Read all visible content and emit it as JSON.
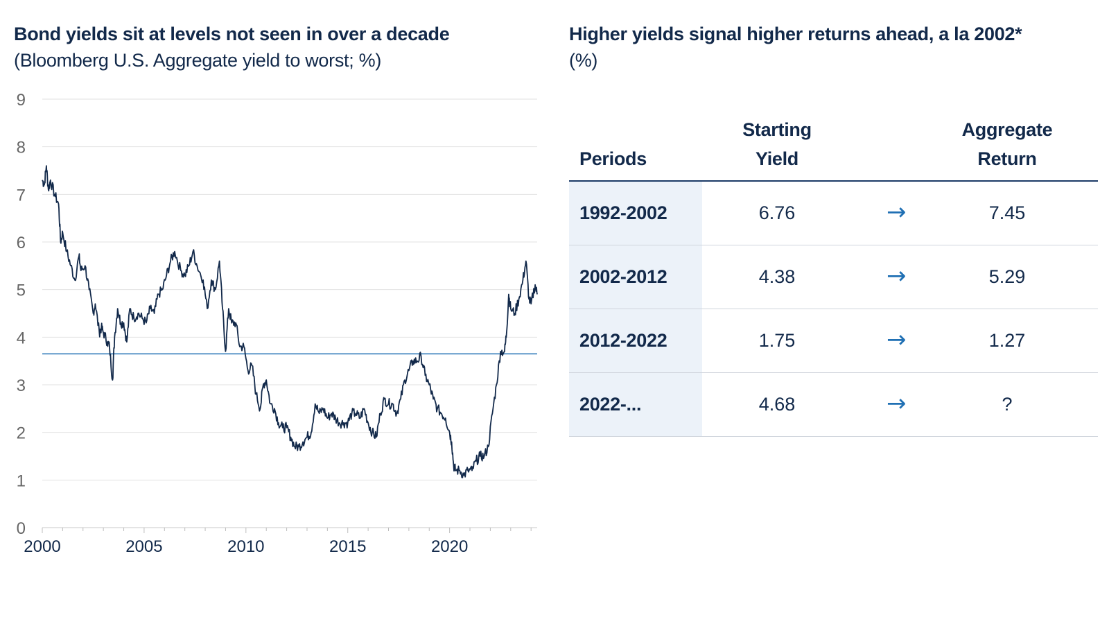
{
  "left": {
    "title": "Bond yields sit at levels not seen in over a decade",
    "subtitle": "(Bloomberg U.S. Aggregate yield to worst; %)"
  },
  "right": {
    "title": "Higher yields signal higher returns ahead, a la 2002*",
    "subtitle": "(%)"
  },
  "table": {
    "headers": {
      "periods": "Periods",
      "starting_yield": [
        "Starting",
        "Yield"
      ],
      "aggregate_return": [
        "Aggregate",
        "Return"
      ]
    },
    "arrow_glyph": "→",
    "rows": [
      {
        "period": "1992-2002",
        "starting_yield": "6.76",
        "aggregate_return": "7.45"
      },
      {
        "period": "2002-2012",
        "starting_yield": "4.38",
        "aggregate_return": "5.29"
      },
      {
        "period": "2012-2022",
        "starting_yield": "1.75",
        "aggregate_return": "1.27"
      },
      {
        "period": "2022-...",
        "starting_yield": "4.68",
        "aggregate_return": "?"
      }
    ]
  },
  "colors": {
    "line": "#12294a",
    "reference_line": "#2070b4",
    "grid": "#e2e2e2",
    "tick_label": "#666666",
    "x_tick_label": "#12294a"
  },
  "chart_data": {
    "type": "line",
    "title": "Bond yields sit at levels not seen in over a decade",
    "subtitle": "(Bloomberg U.S. Aggregate yield to worst; %)",
    "xlabel": "",
    "ylabel": "",
    "xlim": [
      2000,
      2024.3
    ],
    "ylim": [
      0,
      9
    ],
    "x_ticks": [
      2000,
      2005,
      2010,
      2015,
      2020
    ],
    "y_ticks": [
      0,
      1,
      2,
      3,
      4,
      5,
      6,
      7,
      8,
      9
    ],
    "grid": true,
    "reference_line": {
      "y": 3.65
    },
    "series": [
      {
        "x": [
          2000.0,
          2000.1,
          2000.2,
          2000.3,
          2000.4,
          2000.6,
          2000.8,
          2000.9,
          2001.0,
          2001.2,
          2001.4,
          2001.6,
          2001.8,
          2001.9,
          2002.1,
          2002.3,
          2002.5,
          2002.6,
          2002.8,
          2002.9,
          2003.0,
          2003.2,
          2003.3,
          2003.45,
          2003.55,
          2003.7,
          2003.85,
          2004.0,
          2004.15,
          2004.3,
          2004.5,
          2004.7,
          2004.9,
          2005.1,
          2005.3,
          2005.5,
          2005.7,
          2005.9,
          2006.1,
          2006.3,
          2006.5,
          2006.8,
          2007.0,
          2007.2,
          2007.4,
          2007.6,
          2007.9,
          2008.1,
          2008.3,
          2008.5,
          2008.7,
          2008.85,
          2009.0,
          2009.15,
          2009.3,
          2009.5,
          2009.7,
          2009.9,
          2010.1,
          2010.3,
          2010.5,
          2010.7,
          2010.85,
          2011.0,
          2011.2,
          2011.4,
          2011.6,
          2011.8,
          2012.0,
          2012.2,
          2012.4,
          2012.6,
          2012.8,
          2013.0,
          2013.2,
          2013.4,
          2013.6,
          2013.8,
          2014.0,
          2014.2,
          2014.4,
          2014.6,
          2014.8,
          2015.0,
          2015.2,
          2015.4,
          2015.6,
          2015.8,
          2016.0,
          2016.2,
          2016.4,
          2016.6,
          2016.8,
          2017.0,
          2017.2,
          2017.4,
          2017.6,
          2017.8,
          2018.0,
          2018.2,
          2018.4,
          2018.6,
          2018.8,
          2019.0,
          2019.2,
          2019.4,
          2019.6,
          2019.8,
          2020.0,
          2020.1,
          2020.2,
          2020.3,
          2020.5,
          2020.7,
          2020.9,
          2021.1,
          2021.3,
          2021.5,
          2021.7,
          2021.9,
          2022.1,
          2022.3,
          2022.5,
          2022.7,
          2022.8,
          2022.9,
          2023.0,
          2023.2,
          2023.4,
          2023.6,
          2023.75,
          2023.9,
          2024.0,
          2024.2,
          2024.3
        ],
        "values": [
          7.3,
          7.2,
          7.6,
          7.1,
          7.3,
          7.0,
          6.8,
          6.0,
          6.2,
          5.8,
          5.5,
          5.2,
          5.7,
          5.4,
          5.5,
          5.0,
          4.5,
          4.7,
          4.1,
          4.2,
          4.1,
          3.9,
          3.8,
          3.1,
          4.0,
          4.6,
          4.3,
          4.3,
          3.9,
          4.6,
          4.4,
          4.5,
          4.4,
          4.3,
          4.6,
          4.5,
          4.9,
          5.0,
          5.3,
          5.6,
          5.8,
          5.4,
          5.3,
          5.5,
          5.8,
          5.5,
          5.2,
          4.6,
          5.2,
          5.0,
          5.6,
          4.6,
          3.7,
          4.6,
          4.3,
          4.3,
          3.8,
          3.8,
          3.3,
          3.4,
          2.8,
          2.5,
          3.0,
          3.1,
          2.6,
          2.5,
          2.2,
          2.1,
          2.1,
          1.9,
          1.7,
          1.7,
          1.8,
          1.9,
          2.0,
          2.6,
          2.4,
          2.5,
          2.3,
          2.4,
          2.3,
          2.2,
          2.2,
          2.2,
          2.4,
          2.4,
          2.3,
          2.5,
          2.2,
          2.0,
          1.9,
          2.4,
          2.7,
          2.6,
          2.6,
          2.4,
          2.7,
          3.1,
          3.3,
          3.5,
          3.5,
          3.6,
          3.2,
          3.0,
          2.7,
          2.5,
          2.4,
          2.3,
          2.0,
          1.8,
          1.3,
          1.2,
          1.2,
          1.1,
          1.2,
          1.2,
          1.4,
          1.5,
          1.5,
          1.7,
          2.4,
          3.0,
          3.7,
          3.7,
          4.1,
          4.9,
          4.6,
          4.5,
          4.8,
          5.2,
          5.6,
          4.8,
          4.7,
          5.1,
          4.9
        ]
      }
    ]
  }
}
